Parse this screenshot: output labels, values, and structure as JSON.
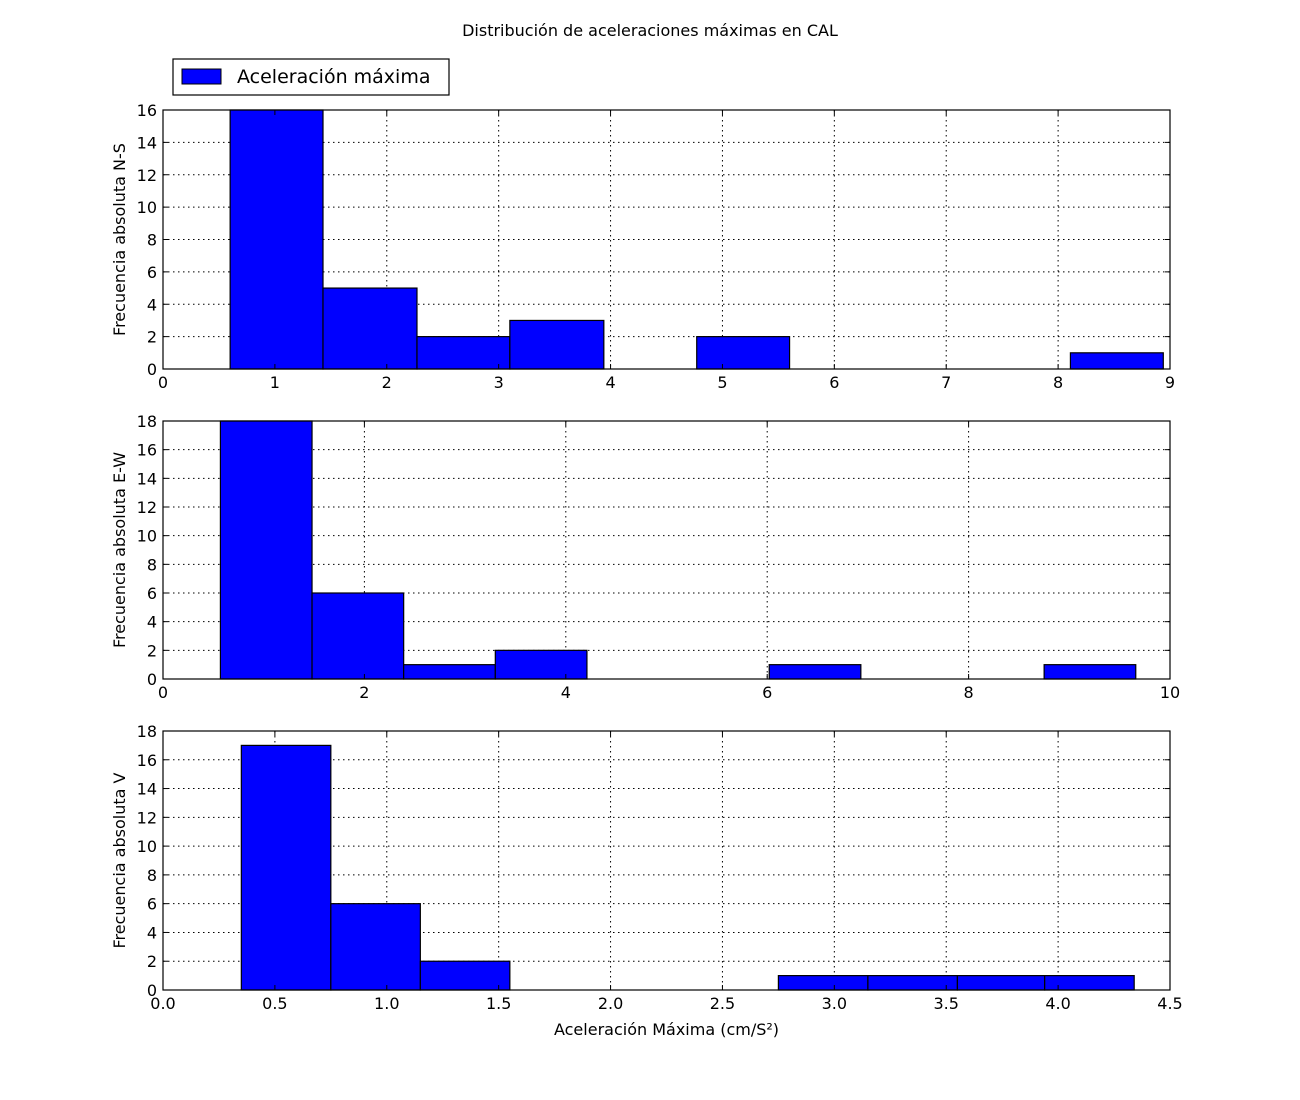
{
  "figure": {
    "title": "Distribución de aceleraciones máximas en CAL",
    "legend_label": "Aceleración máxima",
    "legend_placement": "top-left, above first subplot",
    "bar_color": "#0000ff",
    "edge_color": "#000000"
  },
  "chart_data": [
    {
      "type": "bar",
      "histogram": true,
      "ylabel": "Frecuencia absoluta N-S",
      "xlabel": "",
      "xlim": [
        0,
        9
      ],
      "ylim": [
        0,
        16
      ],
      "xticks": [
        0,
        1,
        2,
        3,
        4,
        5,
        6,
        7,
        8,
        9
      ],
      "yticks": [
        0,
        2,
        4,
        6,
        8,
        10,
        12,
        14,
        16
      ],
      "grid": true,
      "bin_edges": [
        0.6,
        1.43,
        2.27,
        3.1,
        3.94,
        4.77,
        5.6,
        6.44,
        7.27,
        8.11,
        8.94
      ],
      "values": [
        16,
        5,
        2,
        3,
        0,
        2,
        0,
        0,
        0,
        1
      ]
    },
    {
      "type": "bar",
      "histogram": true,
      "ylabel": "Frecuencia absoluta E-W",
      "xlabel": "",
      "xlim": [
        0,
        10
      ],
      "ylim": [
        0,
        18
      ],
      "xticks": [
        0,
        2,
        4,
        6,
        8,
        10
      ],
      "yticks": [
        0,
        2,
        4,
        6,
        8,
        10,
        12,
        14,
        16,
        18
      ],
      "grid": true,
      "bin_edges": [
        0.57,
        1.48,
        2.39,
        3.3,
        4.21,
        5.12,
        6.02,
        6.93,
        7.84,
        8.75,
        9.66
      ],
      "values": [
        18,
        6,
        1,
        2,
        0,
        0,
        1,
        0,
        0,
        1
      ]
    },
    {
      "type": "bar",
      "histogram": true,
      "ylabel": "Frecuencia absoluta V",
      "xlabel": "Aceleración Máxima (cm/S²)",
      "xlim": [
        0,
        4.5
      ],
      "ylim": [
        0,
        18
      ],
      "xticks": [
        0.0,
        0.5,
        1.0,
        1.5,
        2.0,
        2.5,
        3.0,
        3.5,
        4.0,
        4.5
      ],
      "xtick_labels": [
        "0.0",
        "0.5",
        "1.0",
        "1.5",
        "2.0",
        "2.5",
        "3.0",
        "3.5",
        "4.0",
        "4.5"
      ],
      "yticks": [
        0,
        2,
        4,
        6,
        8,
        10,
        12,
        14,
        16,
        18
      ],
      "grid": true,
      "bin_edges": [
        0.35,
        0.75,
        1.15,
        1.55,
        1.95,
        2.35,
        2.75,
        3.15,
        3.55,
        3.94,
        4.34
      ],
      "values": [
        17,
        6,
        2,
        0,
        0,
        0,
        1,
        1,
        1,
        1
      ]
    }
  ]
}
